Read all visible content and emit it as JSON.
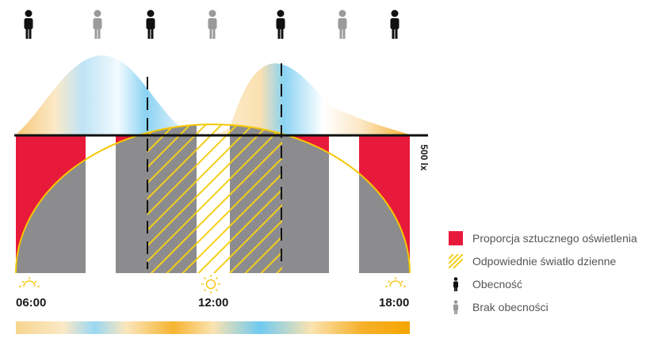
{
  "diagram": {
    "lux_level_label": "500 lx",
    "time_labels": [
      "06:00",
      "12:00",
      "18:00"
    ],
    "presence_sequence": [
      "present",
      "absent",
      "present",
      "absent",
      "present",
      "absent",
      "present"
    ],
    "colors": {
      "artificial_light": "#e81a3b",
      "daylight_curve": "#f5c800",
      "occupancy_gray": "#8c8c8e",
      "present_icon": "#111111",
      "absent_icon": "#9a9a9a",
      "warm_light": "#f5a500",
      "cool_light": "#7fd0f2"
    }
  },
  "legend": {
    "items": [
      {
        "label": "Proporcja sztucznego oświetlenia",
        "icon": "red-square"
      },
      {
        "label": "Odpowiednie światło dzienne",
        "icon": "yellow-hatch"
      },
      {
        "label": "Obecność",
        "icon": "person-dark-icon"
      },
      {
        "label": "Brak obecności",
        "icon": "person-gray-icon"
      }
    ]
  }
}
